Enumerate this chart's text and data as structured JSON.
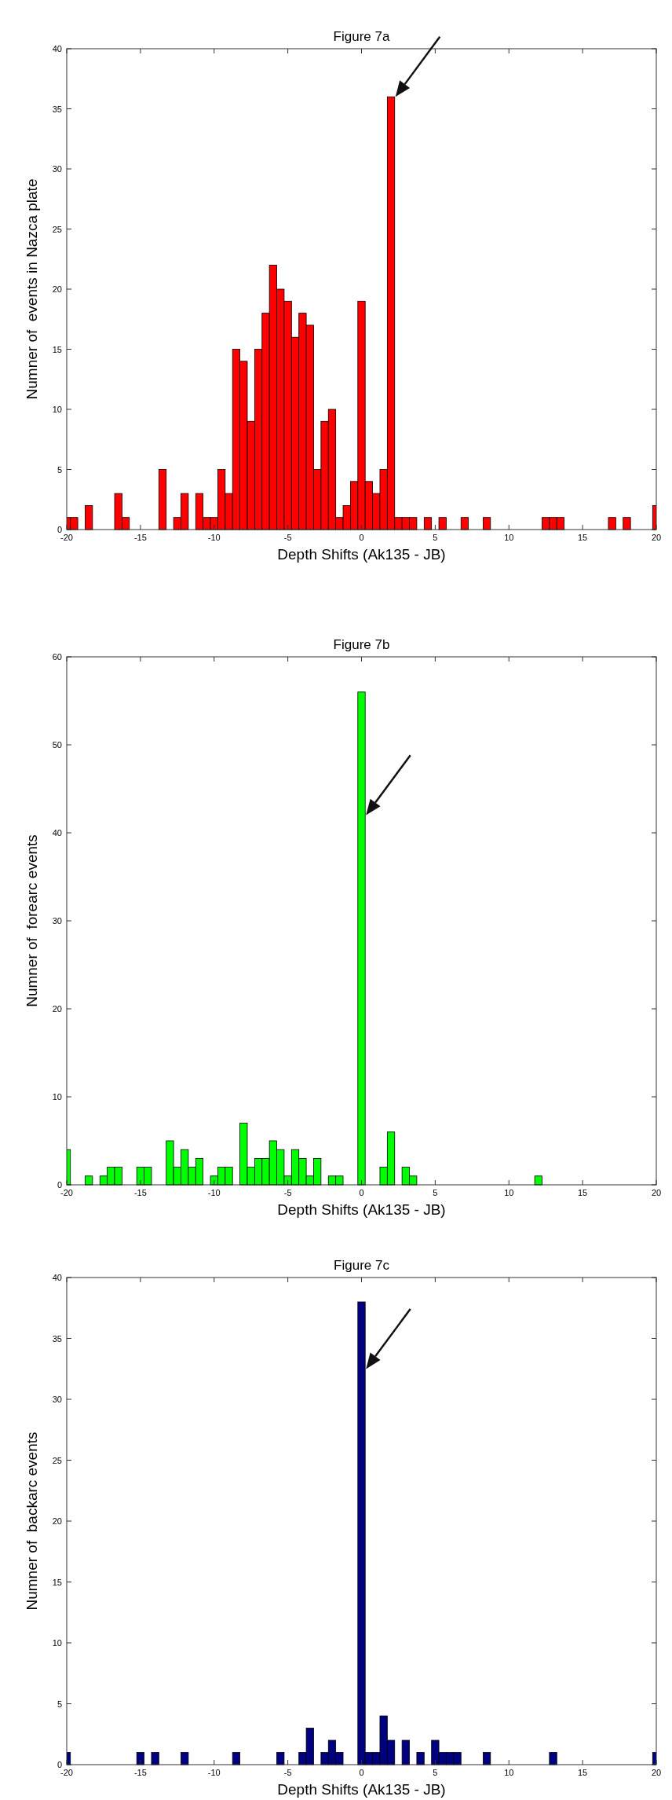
{
  "chart_data": [
    {
      "type": "bar",
      "title": "Figure 7a",
      "xlabel": "Depth Shifts (Ak135 - JB)",
      "ylabel": "Numner of  events in Nazca plate",
      "color": "#ff0000",
      "x": [
        -20,
        -19.5,
        -18.5,
        -16.5,
        -16,
        -13.5,
        -12.5,
        -12,
        -11,
        -10.5,
        -10,
        -9.5,
        -9,
        -8.5,
        -8,
        -7.5,
        -7,
        -6.5,
        -6,
        -5.5,
        -5,
        -4.5,
        -4,
        -3.5,
        -3,
        -2.5,
        -2,
        -1.5,
        -1,
        -0.5,
        0,
        0.5,
        1,
        1.5,
        2,
        2.5,
        3,
        3.5,
        4.5,
        5.5,
        7,
        8.5,
        12.5,
        13,
        13.5,
        17,
        18,
        20
      ],
      "values": [
        1,
        1,
        2,
        3,
        1,
        5,
        1,
        3,
        3,
        1,
        1,
        5,
        3,
        15,
        14,
        9,
        15,
        18,
        22,
        20,
        19,
        16,
        18,
        17,
        5,
        9,
        10,
        1,
        2,
        4,
        19,
        4,
        3,
        5,
        36,
        1,
        1,
        1,
        1,
        1,
        1,
        1,
        1,
        1,
        1,
        1,
        1,
        2
      ],
      "xlim": [
        -20,
        20
      ],
      "ylim": [
        0,
        40
      ],
      "xticks": [
        -20,
        -15,
        -10,
        -5,
        0,
        5,
        10,
        15,
        20
      ],
      "yticks": [
        0,
        5,
        10,
        15,
        20,
        25,
        30,
        35,
        40
      ]
    },
    {
      "type": "bar",
      "title": "Figure 7b",
      "xlabel": "Depth Shifts (Ak135 - JB)",
      "ylabel": "Numner of  forearc events",
      "color": "#00ff00",
      "x": [
        -20,
        -18.5,
        -17.5,
        -17,
        -16.5,
        -15,
        -14.5,
        -13,
        -12.5,
        -12,
        -11.5,
        -11,
        -10,
        -9.5,
        -9,
        -8,
        -7.5,
        -7,
        -6.5,
        -6,
        -5.5,
        -5,
        -4.5,
        -4,
        -3.5,
        -3,
        -2,
        -1.5,
        0,
        1.5,
        2,
        3,
        3.5,
        12
      ],
      "values": [
        4,
        1,
        1,
        2,
        2,
        2,
        2,
        5,
        2,
        4,
        2,
        3,
        1,
        2,
        2,
        7,
        2,
        3,
        3,
        5,
        4,
        1,
        4,
        3,
        1,
        3,
        1,
        1,
        56,
        2,
        6,
        2,
        1,
        1
      ],
      "xlim": [
        -20,
        20
      ],
      "ylim": [
        0,
        60
      ],
      "xticks": [
        -20,
        -15,
        -10,
        -5,
        0,
        5,
        10,
        15,
        20
      ],
      "yticks": [
        0,
        10,
        20,
        30,
        40,
        50,
        60
      ]
    },
    {
      "type": "bar",
      "title": "Figure 7c",
      "xlabel": "Depth Shifts (Ak135 - JB)",
      "ylabel": "Numner of  backarc events",
      "color": "#000080",
      "x": [
        -20,
        -15,
        -14,
        -12,
        -8.5,
        -5.5,
        -4,
        -3.5,
        -2.5,
        -2,
        -1.5,
        0,
        0.5,
        1,
        1.5,
        2,
        3,
        4,
        5,
        5.5,
        6,
        6.5,
        8.5,
        13,
        20
      ],
      "values": [
        1,
        1,
        1,
        1,
        1,
        1,
        1,
        3,
        1,
        2,
        1,
        38,
        1,
        1,
        4,
        2,
        2,
        1,
        2,
        1,
        1,
        1,
        1,
        1,
        1
      ],
      "xlim": [
        -20,
        20
      ],
      "ylim": [
        0,
        40
      ],
      "xticks": [
        -20,
        -15,
        -10,
        -5,
        0,
        5,
        10,
        15,
        20
      ],
      "yticks": [
        0,
        5,
        10,
        15,
        20,
        25,
        30,
        35,
        40
      ]
    }
  ]
}
